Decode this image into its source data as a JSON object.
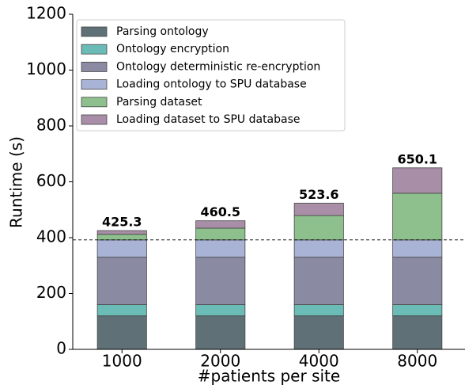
{
  "chart_data": {
    "type": "stacked_bar",
    "xlabel": "#patients per site",
    "ylabel": "Runtime (s)",
    "categories": [
      "1000",
      "2000",
      "4000",
      "8000"
    ],
    "series": [
      {
        "name": "Parsing ontology",
        "color": "#5f7176",
        "values": [
          120,
          120,
          120,
          120
        ]
      },
      {
        "name": "Ontology encryption",
        "color": "#6bbcb6",
        "values": [
          40,
          40,
          40,
          40
        ]
      },
      {
        "name": "Ontology deterministic re-encryption",
        "color": "#8a8aa3",
        "values": [
          170,
          170,
          170,
          170
        ]
      },
      {
        "name": "Loading ontology to SPU database",
        "color": "#a9b3d6",
        "values": [
          62,
          62,
          62,
          62
        ]
      },
      {
        "name": "Parsing dataset",
        "color": "#8ec08d",
        "values": [
          20,
          42,
          87,
          167
        ]
      },
      {
        "name": "Loading dataset to SPU database",
        "color": "#a88ea6",
        "values": [
          13.3,
          26.5,
          44.6,
          91.1
        ]
      }
    ],
    "totals": [
      425.3,
      460.5,
      523.6,
      650.1
    ],
    "hline": 392,
    "ylim": [
      0,
      1200
    ],
    "yticks": [
      0,
      200,
      400,
      600,
      800,
      1000,
      1200
    ],
    "legend": "upper-left"
  }
}
